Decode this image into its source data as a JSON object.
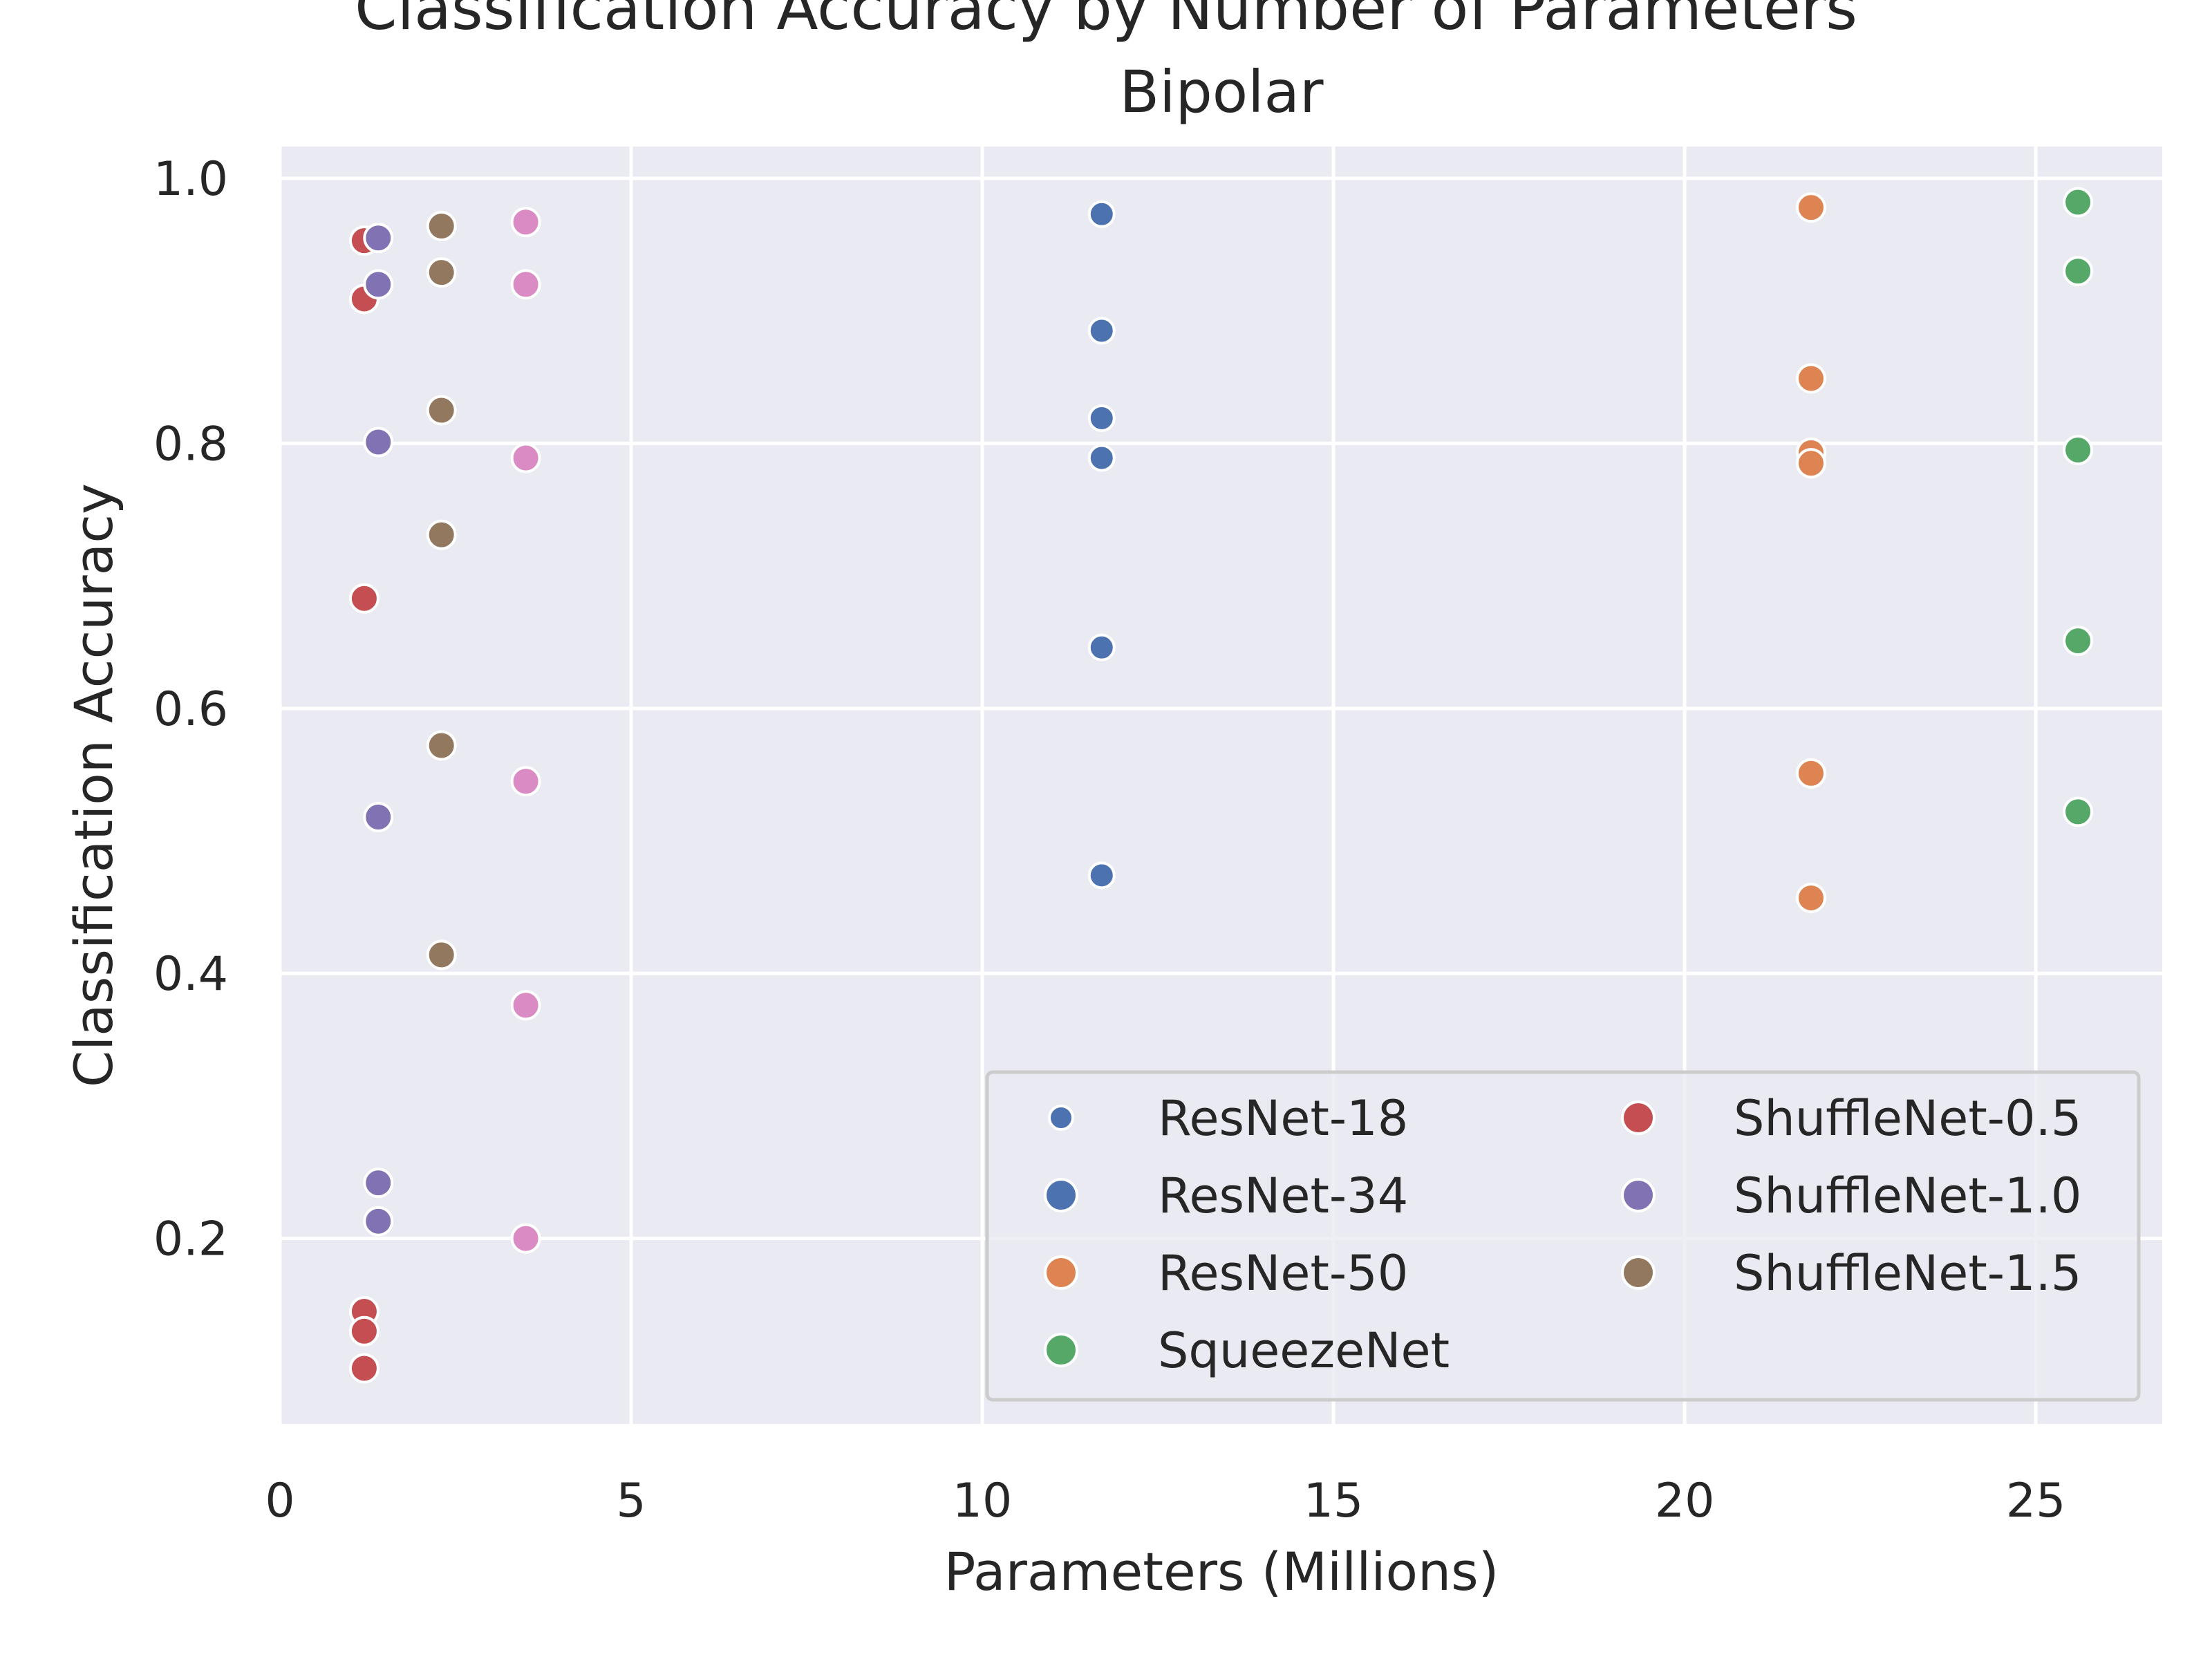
{
  "chart_data": {
    "type": "scatter",
    "suptitle": "Classification Accuracy by Number of Parameters",
    "title": "Bipolar",
    "xlabel": "Parameters (Millions)",
    "ylabel": "Classification Accuracy",
    "xlim": [
      0,
      26.8
    ],
    "ylim": [
      0.06,
      1.024
    ],
    "xticks": [
      0,
      5,
      10,
      15,
      20,
      25
    ],
    "yticks": [
      0.2,
      0.4,
      0.6,
      0.8,
      1.0
    ],
    "grid": true,
    "legend": {
      "position": "lower-right",
      "columns": 2
    },
    "series": [
      {
        "name": "ResNet-18",
        "color": "#4c72b0",
        "marker": "small",
        "x": [
          11.7,
          11.7,
          11.7,
          11.7,
          11.7,
          11.7
        ],
        "y": [
          0.973,
          0.885,
          0.819,
          0.789,
          0.646,
          0.474
        ]
      },
      {
        "name": "ResNet-34",
        "color": "#4c72b0",
        "marker": "normal",
        "x": [],
        "y": []
      },
      {
        "name": "ResNet-50",
        "color": "#dd8452",
        "marker": "normal",
        "x": [
          21.8,
          21.8,
          21.8,
          21.8,
          21.8,
          21.8
        ],
        "y": [
          0.978,
          0.849,
          0.793,
          0.785,
          0.551,
          0.457
        ]
      },
      {
        "name": "SqueezeNet",
        "color": "#55a868",
        "marker": "normal",
        "x": [
          25.6,
          25.6,
          25.6,
          25.6,
          25.6
        ],
        "y": [
          0.982,
          0.93,
          0.795,
          0.651,
          0.522
        ]
      },
      {
        "name": "ShuffleNet-0.5",
        "color": "#c44e52",
        "marker": "normal",
        "x": [
          1.2,
          1.2,
          1.2,
          1.2,
          1.2,
          1.2
        ],
        "y": [
          0.953,
          0.909,
          0.683,
          0.145,
          0.13,
          0.102
        ]
      },
      {
        "name": "ShuffleNet-1.0",
        "color": "#8172b3",
        "marker": "normal",
        "x": [
          1.4,
          1.4,
          1.4,
          1.4,
          1.4,
          1.4
        ],
        "y": [
          0.955,
          0.92,
          0.801,
          0.518,
          0.242,
          0.213
        ]
      },
      {
        "name": "ShuffleNet-1.5",
        "color": "#937860",
        "marker": "normal",
        "x": [
          2.3,
          2.3,
          2.3,
          2.3,
          2.3,
          2.3
        ],
        "y": [
          0.964,
          0.929,
          0.825,
          0.731,
          0.572,
          0.414
        ]
      },
      {
        "name": "",
        "color": "#da8bc3",
        "marker": "normal",
        "x": [
          3.5,
          3.5,
          3.5,
          3.5,
          3.5,
          3.5
        ],
        "y": [
          0.967,
          0.92,
          0.789,
          0.545,
          0.376,
          0.2
        ]
      }
    ]
  }
}
